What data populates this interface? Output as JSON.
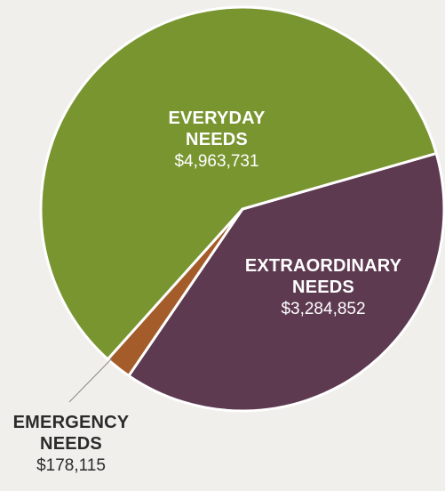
{
  "chart_data": {
    "type": "pie",
    "title": "",
    "slices": [
      {
        "name_line1": "EVERYDAY",
        "name_line2": "NEEDS",
        "value": 4963731,
        "value_label": "$4,963,731",
        "color": "#789530"
      },
      {
        "name_line1": "EXTRAORDINARY",
        "name_line2": "NEEDS",
        "value": 3284852,
        "value_label": "$3,284,852",
        "color": "#5d3a50"
      },
      {
        "name_line1": "EMERGENCY",
        "name_line2": "NEEDS",
        "value": 178115,
        "value_label": "$178,115",
        "color": "#a45d2a"
      }
    ]
  }
}
